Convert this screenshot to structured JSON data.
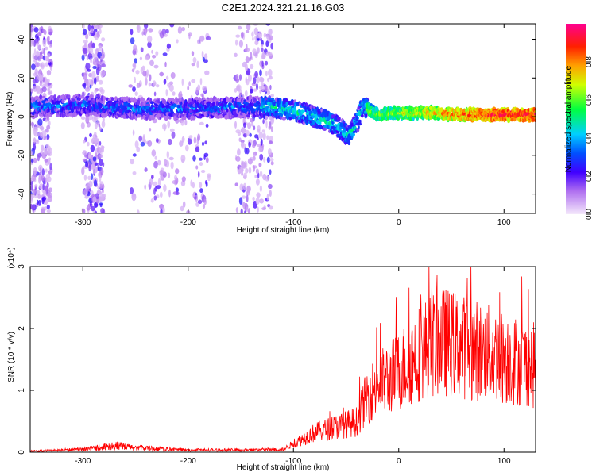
{
  "chart_data": [
    {
      "type": "heatmap",
      "title": "C2E1.2024.321.21.16.G03",
      "xlabel": "Height of straight line (km)",
      "ylabel": "Frequency (Hz)",
      "xlim": [
        -350,
        130
      ],
      "ylim": [
        -50,
        48
      ],
      "x_ticks": [
        -300,
        -200,
        -100,
        0,
        100
      ],
      "y_ticks": [
        -40,
        -20,
        0,
        20,
        40
      ],
      "colorbar": {
        "label": "Normalized spectral amplitude",
        "range": [
          0,
          1
        ],
        "ticks": [
          0.0,
          0.2,
          0.4,
          0.6,
          0.8
        ],
        "tick_labels": [
          "0.0",
          "0.2",
          "0.4",
          "0.6",
          "0.8"
        ],
        "colors": [
          "#f4e8fb",
          "#8a2be2",
          "#0000ff",
          "#00c8ff",
          "#00ff00",
          "#ffff00",
          "#ff8000",
          "#ff0000",
          "#ff00a0"
        ]
      },
      "ridge": [
        [
          -350,
          5
        ],
        [
          -300,
          6
        ],
        [
          -250,
          4
        ],
        [
          -200,
          4
        ],
        [
          -150,
          5
        ],
        [
          -120,
          5
        ],
        [
          -100,
          3
        ],
        [
          -80,
          0
        ],
        [
          -60,
          -4
        ],
        [
          -48,
          -10
        ],
        [
          -40,
          -3
        ],
        [
          -35,
          5
        ],
        [
          -20,
          1
        ],
        [
          0,
          2
        ],
        [
          30,
          2
        ],
        [
          60,
          1
        ],
        [
          100,
          1
        ],
        [
          130,
          1
        ]
      ],
      "scatter_regions": [
        [
          -350,
          -330
        ],
        [
          -300,
          -280
        ],
        [
          -255,
          -180
        ],
        [
          -155,
          -120
        ]
      ]
    },
    {
      "type": "line",
      "title": "",
      "xlabel": "Height of straight line (km)",
      "ylabel": "SNR (10 * v/v)",
      "multiplier": "(x10⁴)",
      "xlim": [
        -350,
        130
      ],
      "ylim": [
        0,
        3
      ],
      "x_ticks": [
        -300,
        -200,
        -100,
        0,
        100
      ],
      "y_ticks": [
        0,
        1,
        2,
        3
      ],
      "line_color": "#ff0000",
      "envelope": [
        [
          -350,
          0.02
        ],
        [
          -300,
          0.05
        ],
        [
          -270,
          0.12
        ],
        [
          -250,
          0.08
        ],
        [
          -200,
          0.04
        ],
        [
          -150,
          0.04
        ],
        [
          -110,
          0.05
        ],
        [
          -95,
          0.2
        ],
        [
          -80,
          0.35
        ],
        [
          -60,
          0.45
        ],
        [
          -40,
          0.55
        ],
        [
          -30,
          1.0
        ],
        [
          -20,
          1.2
        ],
        [
          0,
          1.45
        ],
        [
          20,
          1.8
        ],
        [
          40,
          2.0
        ],
        [
          60,
          1.9
        ],
        [
          80,
          1.8
        ],
        [
          100,
          1.7
        ],
        [
          120,
          1.6
        ],
        [
          130,
          1.55
        ]
      ]
    }
  ]
}
